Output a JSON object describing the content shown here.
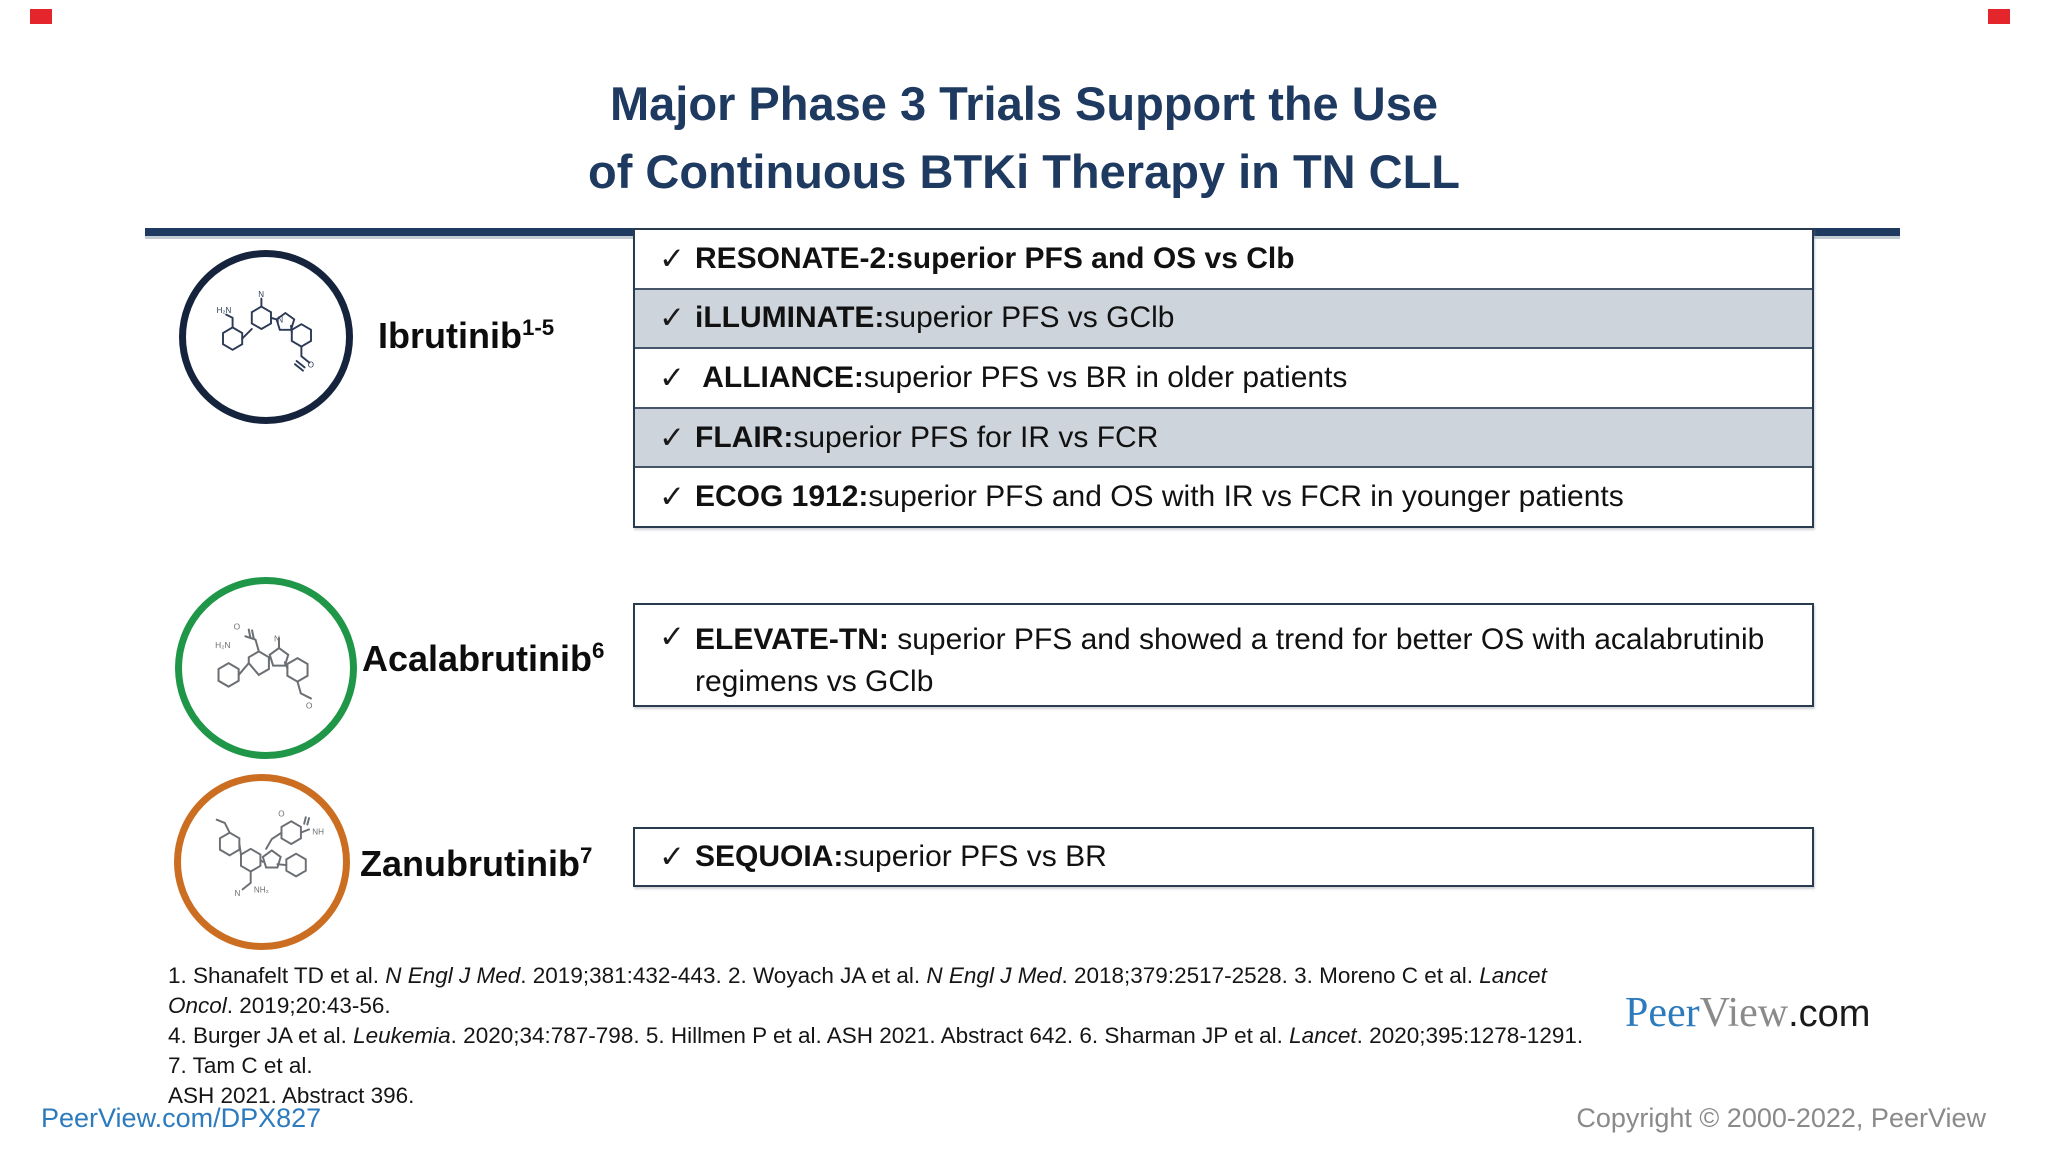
{
  "title": {
    "line1": "Major Phase 3 Trials Support the Use",
    "line2": "of Continuous BTKi Therapy in TN CLL"
  },
  "drugs": {
    "ibrutinib": {
      "name": "Ibrutinib",
      "refs": "1-5"
    },
    "acalabrutinib": {
      "name": "Acalabrutinib",
      "refs": "6"
    },
    "zanubrutinib": {
      "name": "Zanubrutinib",
      "refs": "7"
    }
  },
  "trials": {
    "check_glyph": "✓",
    "ibrutinib_rows": [
      {
        "name": "RESONATE-2:",
        "detail": " superior PFS and OS vs Clb"
      },
      {
        "name": "iLLUMINATE:",
        "detail": " superior PFS vs GClb"
      },
      {
        "name": " ALLIANCE:",
        "detail": " superior PFS vs BR in older patients"
      },
      {
        "name": "FLAIR:",
        "detail": " superior PFS for IR vs FCR"
      },
      {
        "name": "ECOG 1912:",
        "detail": " superior PFS and OS with IR vs FCR in younger patients"
      }
    ],
    "acalabrutinib_rows": [
      {
        "name": "ELEVATE-TN:",
        "detail": " superior PFS and showed a trend for better OS with acalabrutinib regimens vs GClb"
      }
    ],
    "zanubrutinib_rows": [
      {
        "name": "SEQUOIA:",
        "detail": " superior PFS vs BR"
      }
    ]
  },
  "references": {
    "line1": [
      {
        "t": "1. Shanafelt TD et al. ",
        "i": false
      },
      {
        "t": "N Engl J Med",
        "i": true
      },
      {
        "t": ". 2019;381:432-443. 2. Woyach JA et al. ",
        "i": false
      },
      {
        "t": "N Engl J Med",
        "i": true
      },
      {
        "t": ". 2018;379:2517-2528. 3. Moreno C et al. ",
        "i": false
      },
      {
        "t": "Lancet Oncol",
        "i": true
      },
      {
        "t": ". 2019;20:43-56.",
        "i": false
      }
    ],
    "line2": [
      {
        "t": "4. Burger JA et al. ",
        "i": false
      },
      {
        "t": "Leukemia",
        "i": true
      },
      {
        "t": ". 2020;34:787-798. 5. Hillmen P et al. ASH 2021. Abstract 642. 6. Sharman JP et al. ",
        "i": false
      },
      {
        "t": "Lancet",
        "i": true
      },
      {
        "t": ". 2020;395:1278-1291. 7. Tam C et al.",
        "i": false
      }
    ],
    "line3": [
      {
        "t": "ASH 2021. Abstract 396.",
        "i": false
      }
    ]
  },
  "logo": {
    "peer": "Peer",
    "view": "View",
    "com": ".com"
  },
  "footer": {
    "link": "PeerView.com/DPX827",
    "copyright": "Copyright © 2000-2022, PeerView"
  },
  "colors": {
    "title_navy": "#1f3a60",
    "accent_navy": "#15233c",
    "accent_green": "#1f9648",
    "accent_orange": "#cc6e22",
    "shaded_row": "#cdd4db",
    "link_blue": "#2d7bbd",
    "corner_red": "#e4262c"
  }
}
